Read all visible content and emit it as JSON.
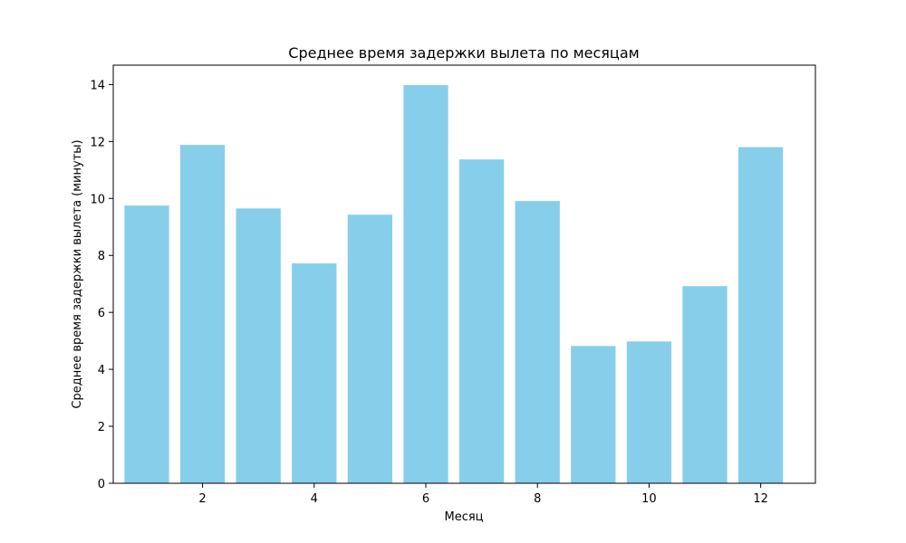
{
  "chart_data": {
    "type": "bar",
    "title": "Среднее время задержки вылета по месяцам",
    "xlabel": "Месяц",
    "ylabel": "Среднее время задержки вылета (минуты)",
    "categories": [
      1,
      2,
      3,
      4,
      5,
      6,
      7,
      8,
      9,
      10,
      11,
      12
    ],
    "values": [
      9.75,
      11.88,
      9.65,
      7.72,
      9.43,
      13.98,
      11.37,
      9.91,
      4.82,
      4.98,
      6.92,
      11.8
    ],
    "xlim": [
      0.4,
      12.98
    ],
    "ylim": [
      0,
      14.68
    ],
    "xticks": [
      2,
      4,
      6,
      8,
      10,
      12
    ],
    "yticks": [
      0,
      2,
      4,
      6,
      8,
      10,
      12,
      14
    ],
    "bar_color": "#87ceeb",
    "grid": false,
    "legend": "none"
  }
}
